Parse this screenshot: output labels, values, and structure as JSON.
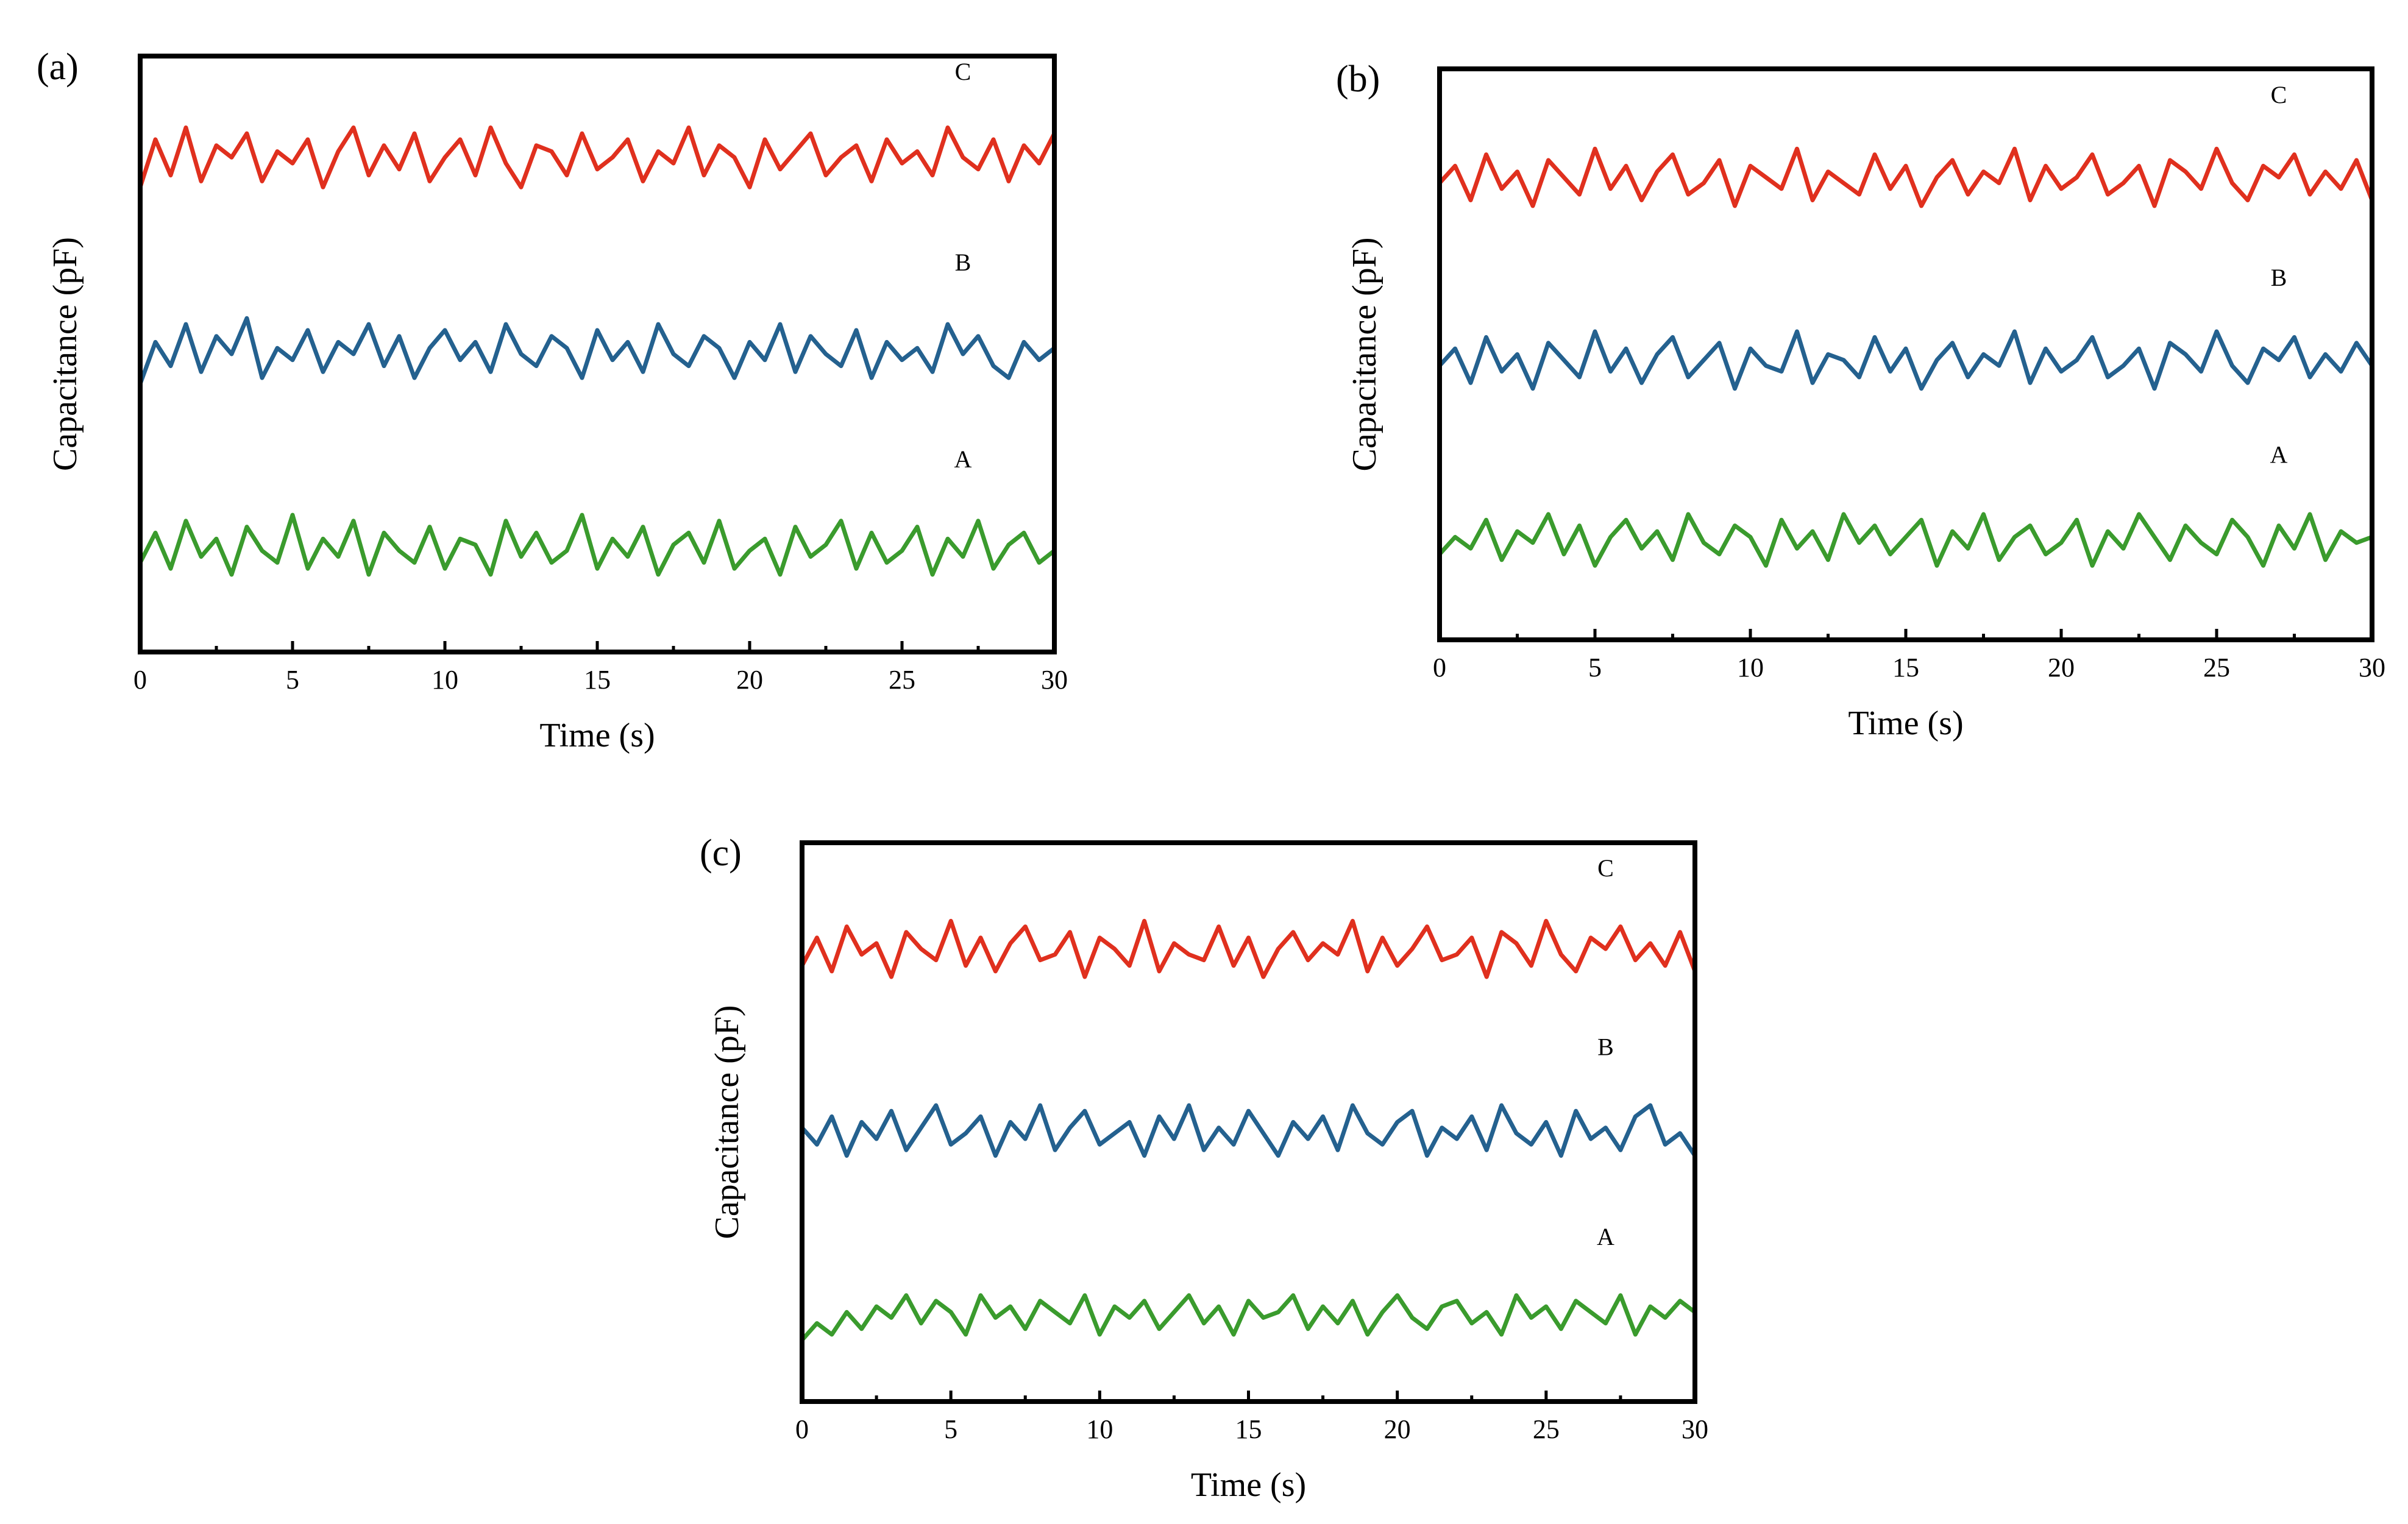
{
  "chart_data": [
    {
      "type": "line",
      "panel_label": "(a)",
      "xlabel": "Time (s)",
      "ylabel": "Capacitance (pF)",
      "xlim": [
        0,
        30
      ],
      "xticks": [
        "0",
        "5",
        "10",
        "15",
        "20",
        "25",
        "30"
      ],
      "y_tick_labels_shown": false,
      "grid": false,
      "series": [
        {
          "name": "C",
          "color": "#e0301e",
          "level": 0.82,
          "values": [
            0.78,
            0.86,
            0.8,
            0.88,
            0.79,
            0.85,
            0.83,
            0.87,
            0.79,
            0.84,
            0.82,
            0.86,
            0.78,
            0.84,
            0.88,
            0.8,
            0.85,
            0.81,
            0.87,
            0.79,
            0.83,
            0.86,
            0.8,
            0.88,
            0.82,
            0.78,
            0.85,
            0.84,
            0.8,
            0.87,
            0.81,
            0.83,
            0.86,
            0.79,
            0.84,
            0.82,
            0.88,
            0.8,
            0.85,
            0.83,
            0.78,
            0.86,
            0.81,
            0.84,
            0.87,
            0.8,
            0.83,
            0.85,
            0.79,
            0.86,
            0.82,
            0.84,
            0.8,
            0.88,
            0.83,
            0.81,
            0.86,
            0.79,
            0.85,
            0.82,
            0.87
          ]
        },
        {
          "name": "B",
          "color": "#24618f",
          "level": 0.5,
          "values": [
            0.45,
            0.52,
            0.48,
            0.55,
            0.47,
            0.53,
            0.5,
            0.56,
            0.46,
            0.51,
            0.49,
            0.54,
            0.47,
            0.52,
            0.5,
            0.55,
            0.48,
            0.53,
            0.46,
            0.51,
            0.54,
            0.49,
            0.52,
            0.47,
            0.55,
            0.5,
            0.48,
            0.53,
            0.51,
            0.46,
            0.54,
            0.49,
            0.52,
            0.47,
            0.55,
            0.5,
            0.48,
            0.53,
            0.51,
            0.46,
            0.52,
            0.49,
            0.55,
            0.47,
            0.53,
            0.5,
            0.48,
            0.54,
            0.46,
            0.52,
            0.49,
            0.51,
            0.47,
            0.55,
            0.5,
            0.53,
            0.48,
            0.46,
            0.52,
            0.49,
            0.51
          ]
        },
        {
          "name": "A",
          "color": "#3a9b2d",
          "level": 0.17,
          "values": [
            0.15,
            0.2,
            0.14,
            0.22,
            0.16,
            0.19,
            0.13,
            0.21,
            0.17,
            0.15,
            0.23,
            0.14,
            0.19,
            0.16,
            0.22,
            0.13,
            0.2,
            0.17,
            0.15,
            0.21,
            0.14,
            0.19,
            0.18,
            0.13,
            0.22,
            0.16,
            0.2,
            0.15,
            0.17,
            0.23,
            0.14,
            0.19,
            0.16,
            0.21,
            0.13,
            0.18,
            0.2,
            0.15,
            0.22,
            0.14,
            0.17,
            0.19,
            0.13,
            0.21,
            0.16,
            0.18,
            0.22,
            0.14,
            0.2,
            0.15,
            0.17,
            0.21,
            0.13,
            0.19,
            0.16,
            0.22,
            0.14,
            0.18,
            0.2,
            0.15,
            0.17
          ]
        }
      ]
    },
    {
      "type": "line",
      "panel_label": "(b)",
      "xlabel": "Time (s)",
      "ylabel": "Capacitance (pF)",
      "xlim": [
        0,
        30
      ],
      "xticks": [
        "0",
        "5",
        "10",
        "15",
        "20",
        "25",
        "30"
      ],
      "y_tick_labels_shown": false,
      "grid": false,
      "series": [
        {
          "name": "C",
          "color": "#e0301e",
          "level": 0.8,
          "values": [
            0.8,
            0.83,
            0.77,
            0.85,
            0.79,
            0.82,
            0.76,
            0.84,
            0.81,
            0.78,
            0.86,
            0.79,
            0.83,
            0.77,
            0.82,
            0.85,
            0.78,
            0.8,
            0.84,
            0.76,
            0.83,
            0.81,
            0.79,
            0.86,
            0.77,
            0.82,
            0.8,
            0.78,
            0.85,
            0.79,
            0.83,
            0.76,
            0.81,
            0.84,
            0.78,
            0.82,
            0.8,
            0.86,
            0.77,
            0.83,
            0.79,
            0.81,
            0.85,
            0.78,
            0.8,
            0.83,
            0.76,
            0.84,
            0.82,
            0.79,
            0.86,
            0.8,
            0.77,
            0.83,
            0.81,
            0.85,
            0.78,
            0.82,
            0.79,
            0.84,
            0.77
          ]
        },
        {
          "name": "B",
          "color": "#24618f",
          "level": 0.48,
          "values": [
            0.48,
            0.51,
            0.45,
            0.53,
            0.47,
            0.5,
            0.44,
            0.52,
            0.49,
            0.46,
            0.54,
            0.47,
            0.51,
            0.45,
            0.5,
            0.53,
            0.46,
            0.49,
            0.52,
            0.44,
            0.51,
            0.48,
            0.47,
            0.54,
            0.45,
            0.5,
            0.49,
            0.46,
            0.53,
            0.47,
            0.51,
            0.44,
            0.49,
            0.52,
            0.46,
            0.5,
            0.48,
            0.54,
            0.45,
            0.51,
            0.47,
            0.49,
            0.53,
            0.46,
            0.48,
            0.51,
            0.44,
            0.52,
            0.5,
            0.47,
            0.54,
            0.48,
            0.45,
            0.51,
            0.49,
            0.53,
            0.46,
            0.5,
            0.47,
            0.52,
            0.48
          ]
        },
        {
          "name": "A",
          "color": "#3a9b2d",
          "level": 0.17,
          "values": [
            0.15,
            0.18,
            0.16,
            0.21,
            0.14,
            0.19,
            0.17,
            0.22,
            0.15,
            0.2,
            0.13,
            0.18,
            0.21,
            0.16,
            0.19,
            0.14,
            0.22,
            0.17,
            0.15,
            0.2,
            0.18,
            0.13,
            0.21,
            0.16,
            0.19,
            0.14,
            0.22,
            0.17,
            0.2,
            0.15,
            0.18,
            0.21,
            0.13,
            0.19,
            0.16,
            0.22,
            0.14,
            0.18,
            0.2,
            0.15,
            0.17,
            0.21,
            0.13,
            0.19,
            0.16,
            0.22,
            0.18,
            0.14,
            0.2,
            0.17,
            0.15,
            0.21,
            0.18,
            0.13,
            0.2,
            0.16,
            0.22,
            0.14,
            0.19,
            0.17,
            0.18
          ]
        }
      ]
    },
    {
      "type": "line",
      "panel_label": "(c)",
      "xlabel": "Time (s)",
      "ylabel": "Capacitance (pF)",
      "xlim": [
        0,
        30
      ],
      "xticks": [
        "0",
        "5",
        "10",
        "15",
        "20",
        "25",
        "30"
      ],
      "y_tick_labels_shown": false,
      "grid": false,
      "series": [
        {
          "name": "C",
          "color": "#e0301e",
          "level": 0.8,
          "values": [
            0.78,
            0.83,
            0.77,
            0.85,
            0.8,
            0.82,
            0.76,
            0.84,
            0.81,
            0.79,
            0.86,
            0.78,
            0.83,
            0.77,
            0.82,
            0.85,
            0.79,
            0.8,
            0.84,
            0.76,
            0.83,
            0.81,
            0.78,
            0.86,
            0.77,
            0.82,
            0.8,
            0.79,
            0.85,
            0.78,
            0.83,
            0.76,
            0.81,
            0.84,
            0.79,
            0.82,
            0.8,
            0.86,
            0.77,
            0.83,
            0.78,
            0.81,
            0.85,
            0.79,
            0.8,
            0.83,
            0.76,
            0.84,
            0.82,
            0.78,
            0.86,
            0.8,
            0.77,
            0.83,
            0.81,
            0.85,
            0.79,
            0.82,
            0.78,
            0.84,
            0.77
          ]
        },
        {
          "name": "B",
          "color": "#24618f",
          "level": 0.48,
          "values": [
            0.49,
            0.46,
            0.51,
            0.44,
            0.5,
            0.47,
            0.52,
            0.45,
            0.49,
            0.53,
            0.46,
            0.48,
            0.51,
            0.44,
            0.5,
            0.47,
            0.53,
            0.45,
            0.49,
            0.52,
            0.46,
            0.48,
            0.5,
            0.44,
            0.51,
            0.47,
            0.53,
            0.45,
            0.49,
            0.46,
            0.52,
            0.48,
            0.44,
            0.5,
            0.47,
            0.51,
            0.45,
            0.53,
            0.48,
            0.46,
            0.5,
            0.52,
            0.44,
            0.49,
            0.47,
            0.51,
            0.45,
            0.53,
            0.48,
            0.46,
            0.5,
            0.44,
            0.52,
            0.47,
            0.49,
            0.45,
            0.51,
            0.53,
            0.46,
            0.48,
            0.44
          ]
        },
        {
          "name": "A",
          "color": "#3a9b2d",
          "level": 0.14,
          "values": [
            0.11,
            0.14,
            0.12,
            0.16,
            0.13,
            0.17,
            0.15,
            0.19,
            0.14,
            0.18,
            0.16,
            0.12,
            0.19,
            0.15,
            0.17,
            0.13,
            0.18,
            0.16,
            0.14,
            0.19,
            0.12,
            0.17,
            0.15,
            0.18,
            0.13,
            0.16,
            0.19,
            0.14,
            0.17,
            0.12,
            0.18,
            0.15,
            0.16,
            0.19,
            0.13,
            0.17,
            0.14,
            0.18,
            0.12,
            0.16,
            0.19,
            0.15,
            0.13,
            0.17,
            0.18,
            0.14,
            0.16,
            0.12,
            0.19,
            0.15,
            0.17,
            0.13,
            0.18,
            0.16,
            0.14,
            0.19,
            0.12,
            0.17,
            0.15,
            0.18,
            0.16
          ]
        }
      ]
    }
  ]
}
